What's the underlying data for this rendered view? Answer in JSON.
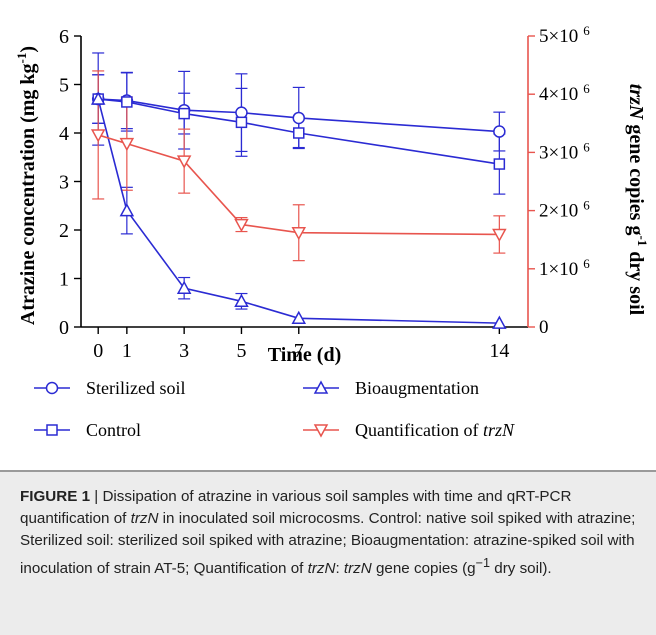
{
  "chart_data": {
    "type": "line",
    "x_axis": {
      "label": "Time (d)",
      "ticks": [
        0,
        1,
        3,
        5,
        7,
        14
      ],
      "range": [
        -0.6,
        15.0
      ]
    },
    "left_axis": {
      "label": "Atrazine concentration (mg kg",
      "label_sup": "-1",
      "label_tail": ")",
      "range": [
        0,
        6
      ],
      "ticks": [
        0,
        1,
        2,
        3,
        4,
        5,
        6
      ]
    },
    "right_axis": {
      "label_italic": "trzN",
      "label_mid": " gene copies g",
      "label_sup": "-1",
      "label_tail": " dry soil",
      "range": [
        0,
        5000000
      ],
      "ticks": [
        {
          "value": 0,
          "text": "0",
          "exp": ""
        },
        {
          "value": 1000000,
          "text": "1×10",
          "exp": "6"
        },
        {
          "value": 2000000,
          "text": "2×10",
          "exp": "6"
        },
        {
          "value": 3000000,
          "text": "3×10",
          "exp": "6"
        },
        {
          "value": 4000000,
          "text": "4×10",
          "exp": "6"
        },
        {
          "value": 5000000,
          "text": "5×10",
          "exp": "6"
        }
      ]
    },
    "series": [
      {
        "name": "Sterilized soil",
        "axis": "left",
        "color": "#2b2bd3",
        "marker": "circle",
        "x": [
          0,
          1,
          3,
          5,
          7,
          14
        ],
        "y": [
          4.7,
          4.67,
          4.47,
          4.42,
          4.31,
          4.03
        ],
        "err": [
          0.95,
          0.58,
          0.8,
          0.8,
          0.63,
          0.4
        ]
      },
      {
        "name": "Control",
        "axis": "left",
        "color": "#2b2bd3",
        "marker": "square",
        "x": [
          0,
          1,
          3,
          5,
          7,
          14
        ],
        "y": [
          4.7,
          4.64,
          4.4,
          4.22,
          4.0,
          3.36
        ],
        "err": [
          0.5,
          0.6,
          0.42,
          0.7,
          0.3,
          0.62
        ]
      },
      {
        "name": "Bioaugmentation",
        "axis": "left",
        "color": "#2b2bd3",
        "marker": "triangle",
        "x": [
          0,
          1,
          3,
          5,
          7,
          14
        ],
        "y": [
          4.7,
          2.4,
          0.8,
          0.53,
          0.18,
          0.08
        ],
        "err": [
          0.5,
          0.48,
          0.22,
          0.16,
          0.0,
          0.0
        ]
      },
      {
        "name": "Quantification of ",
        "name_italic": "trzN",
        "axis": "right",
        "color": "#e8554e",
        "marker": "inv-triangle",
        "x": [
          0,
          1,
          3,
          5,
          7,
          14
        ],
        "y": [
          3300000,
          3150000,
          2850000,
          1760000,
          1620000,
          1590000
        ],
        "err": [
          1100000,
          800000,
          550000,
          120000,
          480000,
          320000
        ]
      }
    ]
  },
  "caption": {
    "label": "FIGURE 1",
    "sep": " | ",
    "t1": "Dissipation of atrazine in various soil samples with time and qRT-PCR quantification of ",
    "i1": "trzN",
    "t2": " in inoculated soil microcosms. Control: native soil spiked with atrazine; Sterilized soil: sterilized soil spiked with atrazine; Bioaugmentation: atrazine-spiked soil with inoculation of strain AT-5; Quantification of ",
    "i2": "trzN",
    "t3": ": ",
    "i3": "trzN",
    "t4": " gene copies (g",
    "sup": "−1",
    "t5": " dry soil)."
  }
}
